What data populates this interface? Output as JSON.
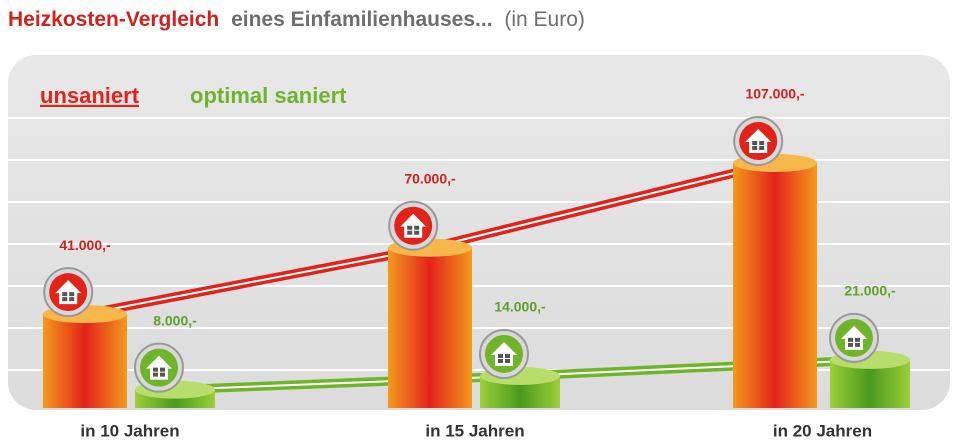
{
  "chart_data": {
    "type": "bar",
    "title": [
      "Heizkosten-Vergleich",
      "eines Einfamilienhauses...",
      "(in Euro)"
    ],
    "categories": [
      "in 10 Jahren",
      "in 15 Jahren",
      "in 20 Jahren"
    ],
    "series": [
      {
        "name": "unsaniert",
        "color": "#e2231a",
        "values": [
          41000,
          70000,
          107000
        ],
        "value_labels": [
          "41.000,-",
          "70.000,-",
          "107.000,-"
        ]
      },
      {
        "name": "optimal saniert",
        "color": "#6fb52c",
        "values": [
          8000,
          14000,
          21000
        ],
        "value_labels": [
          "8.000,-",
          "14.000,-",
          "21.000,-"
        ]
      }
    ]
  }
}
